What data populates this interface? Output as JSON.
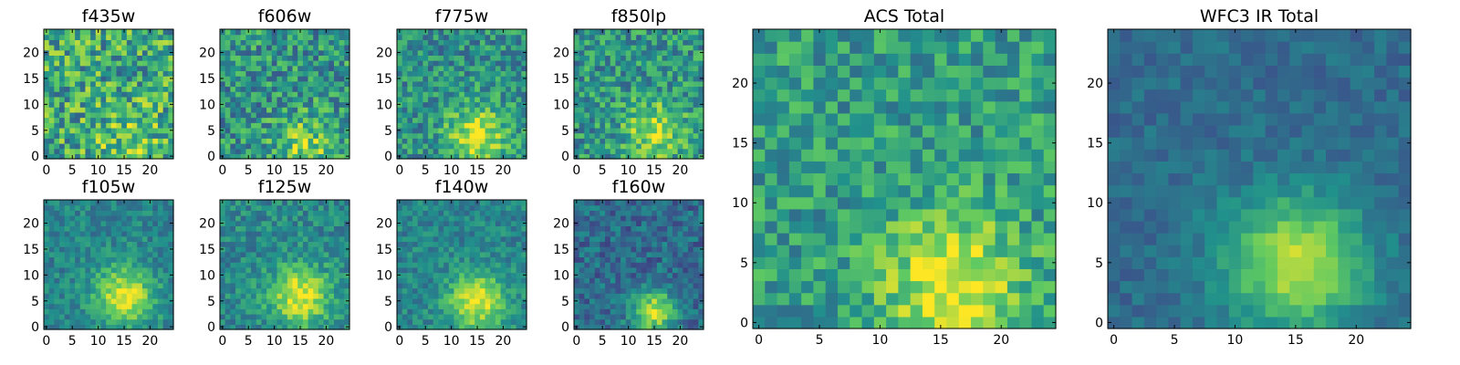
{
  "figure": {
    "colormap": "viridis",
    "colors": [
      "#440154",
      "#3b528b",
      "#21918c",
      "#5ec962",
      "#fde725"
    ]
  },
  "chart_data": [
    {
      "type": "heatmap",
      "title": "f435w",
      "grid_size": 25,
      "xlim": [
        -0.5,
        24.5
      ],
      "ylim": [
        -0.5,
        24.5
      ],
      "xticks": [
        "0",
        "5",
        "10",
        "15",
        "20"
      ],
      "yticks": [
        "0",
        "5",
        "10",
        "15",
        "20"
      ],
      "noise": 0.5,
      "peak": {
        "x": 16,
        "y": 2,
        "amp": 0.15,
        "width": 5
      },
      "base": 0.6,
      "grid": false,
      "seed": 11
    },
    {
      "type": "heatmap",
      "title": "f606w",
      "grid_size": 25,
      "xlim": [
        -0.5,
        24.5
      ],
      "ylim": [
        -0.5,
        24.5
      ],
      "xticks": [
        "0",
        "5",
        "10",
        "15",
        "20"
      ],
      "yticks": [
        "0",
        "5",
        "10",
        "15",
        "20"
      ],
      "noise": 0.42,
      "peak": {
        "x": 16,
        "y": 2,
        "amp": 0.3,
        "width": 4
      },
      "base": 0.52,
      "grid": false,
      "seed": 23
    },
    {
      "type": "heatmap",
      "title": "f775w",
      "grid_size": 25,
      "xlim": [
        -0.5,
        24.5
      ],
      "ylim": [
        -0.5,
        24.5
      ],
      "xticks": [
        "0",
        "5",
        "10",
        "15",
        "20"
      ],
      "yticks": [
        "0",
        "5",
        "10",
        "15",
        "20"
      ],
      "noise": 0.35,
      "peak": {
        "x": 15,
        "y": 4,
        "amp": 0.45,
        "width": 4
      },
      "base": 0.5,
      "grid": false,
      "seed": 37
    },
    {
      "type": "heatmap",
      "title": "f850lp",
      "grid_size": 25,
      "xlim": [
        -0.5,
        24.5
      ],
      "ylim": [
        -0.5,
        24.5
      ],
      "xticks": [
        "0",
        "5",
        "10",
        "15",
        "20"
      ],
      "yticks": [
        "0",
        "5",
        "10",
        "15",
        "20"
      ],
      "noise": 0.38,
      "peak": {
        "x": 15,
        "y": 5,
        "amp": 0.35,
        "width": 4
      },
      "base": 0.52,
      "grid": false,
      "seed": 41
    },
    {
      "type": "heatmap",
      "title": "f105w",
      "grid_size": 25,
      "xlim": [
        -0.5,
        24.5
      ],
      "ylim": [
        -0.5,
        24.5
      ],
      "xticks": [
        "0",
        "5",
        "10",
        "15",
        "20"
      ],
      "yticks": [
        "0",
        "5",
        "10",
        "15",
        "20"
      ],
      "noise": 0.22,
      "peak": {
        "x": 15,
        "y": 6,
        "amp": 0.5,
        "width": 4
      },
      "base": 0.45,
      "grid": false,
      "seed": 53
    },
    {
      "type": "heatmap",
      "title": "f125w",
      "grid_size": 25,
      "xlim": [
        -0.5,
        24.5
      ],
      "ylim": [
        -0.5,
        24.5
      ],
      "xticks": [
        "0",
        "5",
        "10",
        "15",
        "20"
      ],
      "yticks": [
        "0",
        "5",
        "10",
        "15",
        "20"
      ],
      "noise": 0.25,
      "peak": {
        "x": 15,
        "y": 6,
        "amp": 0.5,
        "width": 4
      },
      "base": 0.47,
      "grid": false,
      "seed": 67
    },
    {
      "type": "heatmap",
      "title": "f140w",
      "grid_size": 25,
      "xlim": [
        -0.5,
        24.5
      ],
      "ylim": [
        -0.5,
        24.5
      ],
      "xticks": [
        "0",
        "5",
        "10",
        "15",
        "20"
      ],
      "yticks": [
        "0",
        "5",
        "10",
        "15",
        "20"
      ],
      "noise": 0.22,
      "peak": {
        "x": 15,
        "y": 5,
        "amp": 0.5,
        "width": 4
      },
      "base": 0.45,
      "grid": false,
      "seed": 71
    },
    {
      "type": "heatmap",
      "title": "f160w",
      "grid_size": 25,
      "xlim": [
        -0.5,
        24.5
      ],
      "ylim": [
        -0.5,
        24.5
      ],
      "xticks": [
        "0",
        "5",
        "10",
        "15",
        "20"
      ],
      "yticks": [
        "0",
        "5",
        "10",
        "15",
        "20"
      ],
      "noise": 0.25,
      "peak": {
        "x": 15,
        "y": 3,
        "amp": 0.55,
        "width": 3
      },
      "base": 0.35,
      "grid": false,
      "seed": 83
    },
    {
      "type": "heatmap",
      "title": "ACS Total",
      "grid_size": 25,
      "xlim": [
        -0.5,
        24.5
      ],
      "ylim": [
        -0.5,
        24.5
      ],
      "xticks": [
        "0",
        "5",
        "10",
        "15",
        "20"
      ],
      "yticks": [
        "0",
        "5",
        "10",
        "15",
        "20"
      ],
      "noise": 0.32,
      "peak": {
        "x": 16,
        "y": 3,
        "amp": 0.45,
        "width": 4
      },
      "base": 0.55,
      "grid": false,
      "seed": 97
    },
    {
      "type": "heatmap",
      "title": "WFC3 IR Total",
      "grid_size": 25,
      "xlim": [
        -0.5,
        24.5
      ],
      "ylim": [
        -0.5,
        24.5
      ],
      "xticks": [
        "0",
        "5",
        "10",
        "15",
        "20"
      ],
      "yticks": [
        "0",
        "5",
        "10",
        "15",
        "20"
      ],
      "noise": 0.14,
      "peak": {
        "x": 15,
        "y": 5,
        "amp": 0.55,
        "width": 4
      },
      "base": 0.35,
      "grid": false,
      "seed": 101
    }
  ]
}
